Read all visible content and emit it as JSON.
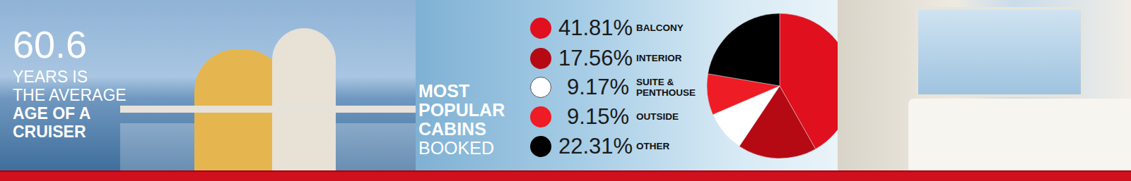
{
  "stat": {
    "value": 60.6,
    "lines": [
      "YEARS IS",
      "THE AVERAGE"
    ],
    "bold_lines": [
      "AGE OF A",
      "CRUISER"
    ]
  },
  "chart_data": {
    "type": "pie",
    "title": "MOST POPULAR CABINS",
    "subtitle": "BOOKED",
    "categories": [
      "BALCONY",
      "INTERIOR",
      "SUITE & PENTHOUSE",
      "OUTSIDE",
      "OTHER"
    ],
    "values": [
      41.81,
      17.56,
      9.17,
      9.15,
      22.31
    ],
    "value_labels": [
      "41.81%",
      "17.56%",
      "9.17%",
      "9.15%",
      "22.31%"
    ],
    "colors": [
      "#e0101e",
      "#b50a14",
      "#ffffff",
      "#ee1c24",
      "#000000"
    ],
    "legend": "left"
  }
}
